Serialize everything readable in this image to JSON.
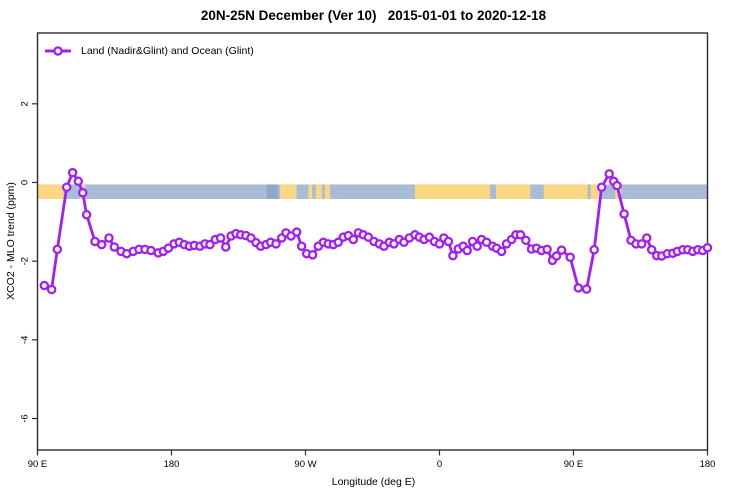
{
  "header": {
    "title": "20N-25N December (Ver 10)   2015-01-01 to 2020-12-18"
  },
  "chart_data": {
    "type": "line",
    "title": "20N-25N December (Ver 10)   2015-01-01 to 2020-12-18",
    "xlabel": "Longitude (deg E)",
    "ylabel": "XCO2 - MLO trend (ppm)",
    "grid": false,
    "xlim": [
      90,
      540
    ],
    "ylim": [
      -6.8,
      3.8
    ],
    "x_axis_note": "longitude plotted continuously eastward starting at 90E (90 to 540 deg E)",
    "x_ticks": [
      {
        "value": 90,
        "label": "90 E"
      },
      {
        "value": 180,
        "label": "180"
      },
      {
        "value": 270,
        "label": "90 W"
      },
      {
        "value": 360,
        "label": "0"
      },
      {
        "value": 450,
        "label": "90 E"
      },
      {
        "value": 540,
        "label": "180"
      }
    ],
    "y_ticks": [
      {
        "value": 2,
        "label": "2"
      },
      {
        "value": 0,
        "label": "0"
      },
      {
        "value": -2,
        "label": "-2"
      },
      {
        "value": -4,
        "label": "-4"
      },
      {
        "value": -6,
        "label": "-6"
      }
    ],
    "legend": {
      "position": "top-left",
      "entries": [
        {
          "label": "Land (Nadir&Glint) and Ocean (Glint)",
          "color": "#A120F0",
          "marker": "open-circle-on-line"
        }
      ]
    },
    "map_band": {
      "description": "thin world-map strip of the 20N-25N latitude belt drawn along y~-0.2 ppm",
      "value_top": -0.05,
      "value_bottom": -0.42,
      "ocean_color": "#A9BCD6",
      "dark_ocean_color": "#8FA7C9",
      "land_color": "#FBD784",
      "land_segments_deg": [
        [
          90,
          107.5
        ],
        [
          118.5,
          122
        ],
        [
          253,
          264
        ],
        [
          272,
          274.5
        ],
        [
          277,
          281
        ],
        [
          283,
          286.5
        ],
        [
          343.5,
          394
        ],
        [
          398,
          421
        ],
        [
          430,
          459.5
        ],
        [
          461.5,
          468.5
        ],
        [
          478,
          482
        ]
      ],
      "dark_ocean_segments_deg": [
        [
          244,
          251.5
        ]
      ]
    },
    "series": [
      {
        "name": "Land (Nadir&Glint) and Ocean (Glint)",
        "color": "#A120F0",
        "marker_fill": "#ffffff",
        "points": [
          [
            94.6,
            -2.62
          ],
          [
            99.5,
            -2.72
          ],
          [
            103.3,
            -1.7
          ],
          [
            109.6,
            -0.12
          ],
          [
            113.6,
            0.25
          ],
          [
            117.4,
            0.03
          ],
          [
            120.4,
            -0.26
          ],
          [
            123.0,
            -0.82
          ],
          [
            128.6,
            -1.5
          ],
          [
            133.1,
            -1.58
          ],
          [
            138.0,
            -1.41
          ],
          [
            141.6,
            -1.64
          ],
          [
            146.1,
            -1.75
          ],
          [
            149.9,
            -1.81
          ],
          [
            154.3,
            -1.75
          ],
          [
            158.2,
            -1.7
          ],
          [
            162.2,
            -1.7
          ],
          [
            166.2,
            -1.73
          ],
          [
            171.1,
            -1.79
          ],
          [
            174.5,
            -1.75
          ],
          [
            177.9,
            -1.67
          ],
          [
            181.7,
            -1.56
          ],
          [
            185.2,
            -1.52
          ],
          [
            188.6,
            -1.58
          ],
          [
            192.0,
            -1.62
          ],
          [
            195.3,
            -1.6
          ],
          [
            199.1,
            -1.62
          ],
          [
            202.5,
            -1.56
          ],
          [
            205.8,
            -1.58
          ],
          [
            209.4,
            -1.45
          ],
          [
            213.0,
            -1.41
          ],
          [
            216.4,
            -1.64
          ],
          [
            220.0,
            -1.36
          ],
          [
            223.3,
            -1.3
          ],
          [
            226.5,
            -1.33
          ],
          [
            230.0,
            -1.35
          ],
          [
            233.4,
            -1.41
          ],
          [
            236.8,
            -1.53
          ],
          [
            239.9,
            -1.62
          ],
          [
            243.5,
            -1.58
          ],
          [
            246.6,
            -1.52
          ],
          [
            250.2,
            -1.56
          ],
          [
            254.0,
            -1.41
          ],
          [
            256.9,
            -1.28
          ],
          [
            260.3,
            -1.36
          ],
          [
            264.1,
            -1.26
          ],
          [
            267.4,
            -1.62
          ],
          [
            270.8,
            -1.81
          ],
          [
            274.8,
            -1.84
          ],
          [
            278.6,
            -1.62
          ],
          [
            282.0,
            -1.52
          ],
          [
            285.3,
            -1.56
          ],
          [
            288.7,
            -1.58
          ],
          [
            292.0,
            -1.52
          ],
          [
            295.4,
            -1.39
          ],
          [
            298.8,
            -1.35
          ],
          [
            302.1,
            -1.45
          ],
          [
            305.5,
            -1.28
          ],
          [
            308.8,
            -1.33
          ],
          [
            312.2,
            -1.39
          ],
          [
            316.0,
            -1.5
          ],
          [
            319.6,
            -1.56
          ],
          [
            322.7,
            -1.62
          ],
          [
            326.3,
            -1.52
          ],
          [
            329.4,
            -1.56
          ],
          [
            333.0,
            -1.45
          ],
          [
            336.1,
            -1.52
          ],
          [
            339.7,
            -1.41
          ],
          [
            343.5,
            -1.33
          ],
          [
            346.4,
            -1.39
          ],
          [
            349.6,
            -1.45
          ],
          [
            353.2,
            -1.39
          ],
          [
            356.6,
            -1.5
          ],
          [
            360.0,
            -1.56
          ],
          [
            362.9,
            -1.41
          ],
          [
            366.0,
            -1.5
          ],
          [
            369.0,
            -1.86
          ],
          [
            372.6,
            -1.69
          ],
          [
            375.9,
            -1.62
          ],
          [
            378.6,
            -1.73
          ],
          [
            382.2,
            -1.5
          ],
          [
            385.3,
            -1.62
          ],
          [
            388.3,
            -1.45
          ],
          [
            391.6,
            -1.52
          ],
          [
            395.7,
            -1.62
          ],
          [
            398.3,
            -1.67
          ],
          [
            401.7,
            -1.75
          ],
          [
            405.0,
            -1.56
          ],
          [
            408.4,
            -1.45
          ],
          [
            411.3,
            -1.33
          ],
          [
            414.4,
            -1.33
          ],
          [
            418.0,
            -1.47
          ],
          [
            421.8,
            -1.69
          ],
          [
            425.2,
            -1.67
          ],
          [
            428.5,
            -1.73
          ],
          [
            432.3,
            -1.7
          ],
          [
            435.9,
            -1.98
          ],
          [
            438.6,
            -1.87
          ],
          [
            442.0,
            -1.72
          ],
          [
            447.8,
            -1.9
          ],
          [
            453.2,
            -2.68
          ],
          [
            458.8,
            -2.71
          ],
          [
            463.9,
            -1.71
          ],
          [
            468.9,
            -0.12
          ],
          [
            474.0,
            0.22
          ],
          [
            477.0,
            0.03
          ],
          [
            479.2,
            -0.08
          ],
          [
            484.0,
            -0.8
          ],
          [
            488.6,
            -1.47
          ],
          [
            492.0,
            -1.56
          ],
          [
            495.8,
            -1.56
          ],
          [
            499.2,
            -1.41
          ],
          [
            502.5,
            -1.71
          ],
          [
            505.9,
            -1.86
          ],
          [
            509.3,
            -1.87
          ],
          [
            513.0,
            -1.81
          ],
          [
            516.7,
            -1.8
          ],
          [
            519.8,
            -1.75
          ],
          [
            523.4,
            -1.71
          ],
          [
            526.8,
            -1.71
          ],
          [
            530.1,
            -1.75
          ],
          [
            533.5,
            -1.71
          ],
          [
            536.8,
            -1.73
          ],
          [
            540.0,
            -1.66
          ]
        ]
      }
    ],
    "frame_color": "#2e2e2e",
    "text_color": "#000000"
  }
}
